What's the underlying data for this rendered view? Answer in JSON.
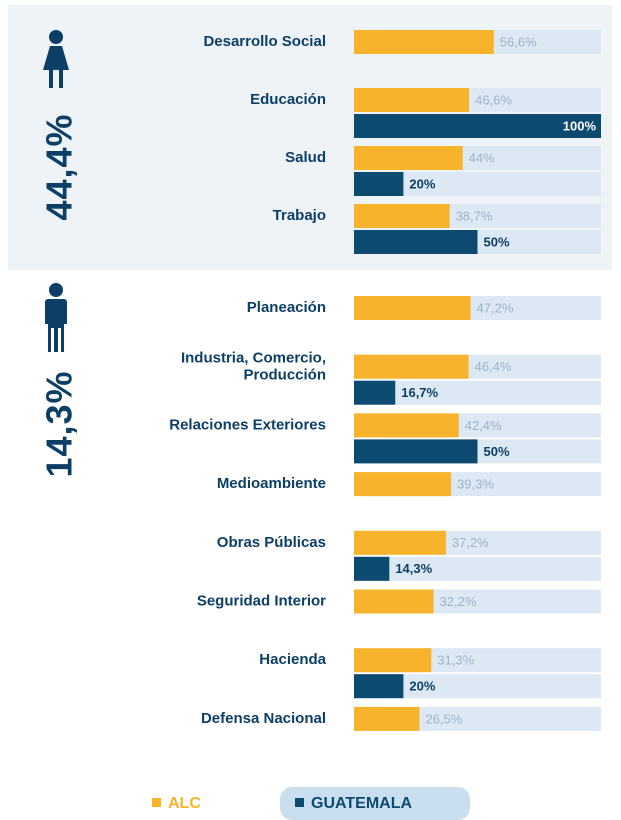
{
  "chart_data": [
    {
      "type": "bar",
      "orientation": "horizontal",
      "stat": "44,4%",
      "xlim": [
        0,
        100
      ],
      "categories": [
        "Desarrollo Social",
        "Educación",
        "Salud",
        "Trabajo"
      ],
      "series": [
        {
          "name": "ALC",
          "color": "#f7b32b",
          "values": [
            56.6,
            46.6,
            44,
            38.7
          ],
          "value_labels": [
            "56,6%",
            "46,6%",
            "44%",
            "38,7%"
          ]
        },
        {
          "name": "GUATEMALA",
          "color": "#0d4a70",
          "values": [
            null,
            100,
            20,
            50
          ],
          "value_labels": [
            null,
            "100%",
            "20%",
            "50%"
          ]
        }
      ]
    },
    {
      "type": "bar",
      "orientation": "horizontal",
      "stat": "14,3%",
      "xlim": [
        0,
        100
      ],
      "categories": [
        "Planeación",
        "Industria, Comercio,\nProducción",
        "Relaciones Exteriores",
        "Medioambiente",
        "Obras Públicas",
        "Seguridad Interior",
        "Hacienda",
        "Defensa Nacional"
      ],
      "series": [
        {
          "name": "ALC",
          "color": "#f7b32b",
          "values": [
            47.2,
            46.4,
            42.4,
            39.3,
            37.2,
            32.2,
            31.3,
            26.5
          ],
          "value_labels": [
            "47,2%",
            "46,4%",
            "42,4%",
            "39,3%",
            "37,2%",
            "32,2%",
            "31,3%",
            "26,5%"
          ]
        },
        {
          "name": "GUATEMALA",
          "color": "#0d4a70",
          "values": [
            null,
            16.7,
            50,
            null,
            14.3,
            null,
            20,
            null
          ],
          "value_labels": [
            null,
            "16,7%",
            "50%",
            null,
            "14,3%",
            null,
            "20%",
            null
          ]
        }
      ]
    }
  ]
}
